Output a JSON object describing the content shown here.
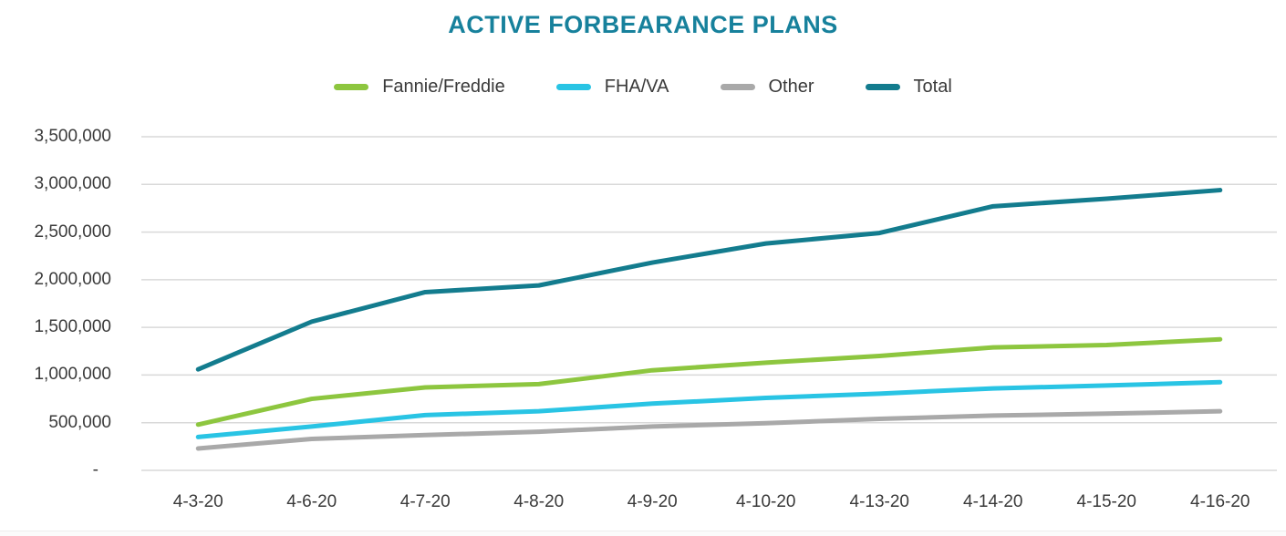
{
  "title": "ACTIVE FORBEARANCE PLANS",
  "colors": {
    "title": "#17819C",
    "axis_text": "#3A3A3A",
    "gridline": "#D9D9D9",
    "fannie_freddie": "#8DC63F",
    "fha_va": "#29C4E4",
    "other": "#A9A9A9",
    "total": "#137C8E"
  },
  "legend": {
    "items": [
      {
        "label": "Fannie/Freddie",
        "color_key": "fannie_freddie"
      },
      {
        "label": "FHA/VA",
        "color_key": "fha_va"
      },
      {
        "label": "Other",
        "color_key": "other"
      },
      {
        "label": "Total",
        "color_key": "total"
      }
    ]
  },
  "y_axis": {
    "tick_labels": [
      "3,500,000",
      "3,000,000",
      "2,500,000",
      "2,000,000",
      "1,500,000",
      "1,000,000",
      "500,000",
      "-"
    ],
    "tick_values": [
      3500000,
      3000000,
      2500000,
      2000000,
      1500000,
      1000000,
      500000,
      0
    ]
  },
  "x_axis": {
    "tick_labels": [
      "4-3-20",
      "4-6-20",
      "4-7-20",
      "4-8-20",
      "4-9-20",
      "4-10-20",
      "4-13-20",
      "4-14-20",
      "4-15-20",
      "4-16-20"
    ]
  },
  "chart_data": {
    "type": "line",
    "title": "ACTIVE FORBEARANCE PLANS",
    "xlabel": "",
    "ylabel": "",
    "ylim": [
      0,
      3500000
    ],
    "grid": "horizontal",
    "legend_position": "top",
    "categories": [
      "4-3-20",
      "4-6-20",
      "4-7-20",
      "4-8-20",
      "4-9-20",
      "4-10-20",
      "4-13-20",
      "4-14-20",
      "4-15-20",
      "4-16-20"
    ],
    "series": [
      {
        "name": "Fannie/Freddie",
        "color_key": "fannie_freddie",
        "values": [
          480000,
          750000,
          870000,
          905000,
          1050000,
          1130000,
          1200000,
          1290000,
          1315000,
          1375000
        ]
      },
      {
        "name": "FHA/VA",
        "color_key": "fha_va",
        "values": [
          350000,
          460000,
          580000,
          620000,
          700000,
          760000,
          805000,
          860000,
          890000,
          925000
        ]
      },
      {
        "name": "Other",
        "color_key": "other",
        "values": [
          230000,
          330000,
          370000,
          405000,
          460000,
          495000,
          540000,
          575000,
          595000,
          620000
        ]
      },
      {
        "name": "Total",
        "color_key": "total",
        "values": [
          1060000,
          1560000,
          1870000,
          1940000,
          2180000,
          2380000,
          2490000,
          2770000,
          2850000,
          2940000
        ]
      }
    ]
  }
}
